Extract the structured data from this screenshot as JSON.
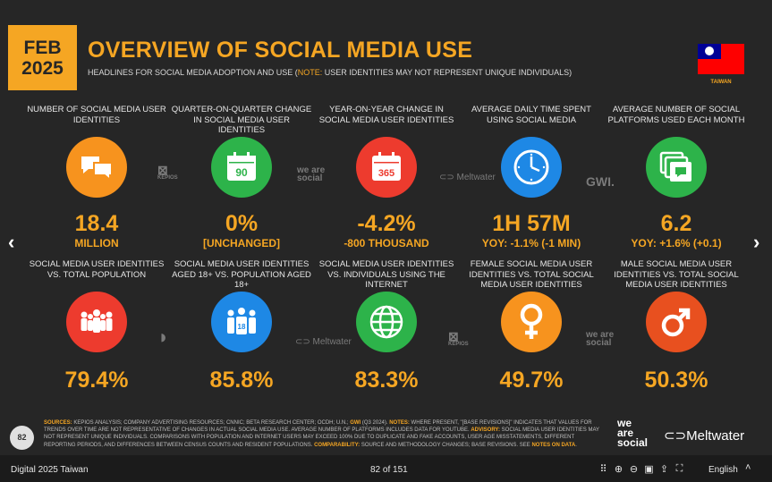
{
  "header": {
    "month": "FEB",
    "year": "2025",
    "title": "OVERVIEW OF SOCIAL MEDIA USE",
    "subtitle_main": "HEADLINES FOR SOCIAL MEDIA ADOPTION AND USE (",
    "subtitle_note": "NOTE:",
    "subtitle_rest": " USER IDENTITIES MAY NOT REPRESENT UNIQUE INDIVIDUALS)",
    "country": "TAIWAN"
  },
  "colors": {
    "accent": "#f5a623",
    "orange": "#f7931e",
    "green": "#2db34a",
    "red": "#ed3b2e",
    "blue": "#1e88e5",
    "dark_orange": "#e8501f"
  },
  "row1": [
    {
      "label": "NUMBER OF SOCIAL MEDIA USER IDENTITIES",
      "value": "18.4",
      "sub": "MILLION",
      "icon": "speech-bubbles-icon"
    },
    {
      "label": "QUARTER-ON-QUARTER CHANGE IN SOCIAL MEDIA USER IDENTITIES",
      "value": "0%",
      "sub": "[UNCHANGED]",
      "icon": "calendar-90-icon",
      "icon_text": "90"
    },
    {
      "label": "YEAR-ON-YEAR CHANGE IN SOCIAL MEDIA USER IDENTITIES",
      "value": "-4.2%",
      "sub": "-800 THOUSAND",
      "icon": "calendar-365-icon",
      "icon_text": "365"
    },
    {
      "label": "AVERAGE DAILY TIME SPENT USING SOCIAL MEDIA",
      "value": "1H 57M",
      "sub": "YOY: -1.1% (-1 MIN)",
      "icon": "clock-icon"
    },
    {
      "label": "AVERAGE NUMBER OF SOCIAL PLATFORMS USED EACH MONTH",
      "value": "6.2",
      "sub": "YOY: +1.6% (+0.1)",
      "icon": "stacked-windows-icon"
    }
  ],
  "row2": [
    {
      "label": "SOCIAL MEDIA USER IDENTITIES vs. TOTAL POPULATION",
      "value": "79.4%",
      "icon": "crowd-icon"
    },
    {
      "label": "SOCIAL MEDIA USER IDENTITIES AGED 18+ vs. POPULATION AGED 18+",
      "value": "85.8%",
      "icon": "adults-18-icon",
      "icon_text": "18"
    },
    {
      "label": "SOCIAL MEDIA USER IDENTITIES vs. INDIVIDUALS USING THE INTERNET",
      "value": "83.3%",
      "icon": "globe-icon"
    },
    {
      "label": "FEMALE SOCIAL MEDIA USER IDENTITIES vs. TOTAL SOCIAL MEDIA USER IDENTITIES",
      "value": "49.7%",
      "icon": "female-symbol-icon"
    },
    {
      "label": "MALE SOCIAL MEDIA USER IDENTITIES vs. TOTAL SOCIAL MEDIA USER IDENTITIES",
      "value": "50.3%",
      "icon": "male-symbol-icon"
    }
  ],
  "watermarks": {
    "kepios_a": "KEPIOS",
    "wearesocial_a": "we are social",
    "meltwater_a": "Meltwater",
    "gwi": "GWI.",
    "meltwater_b": "Meltwater",
    "kepios_b": "KEPIOS",
    "wearesocial_b": "we are social"
  },
  "footer": {
    "page_number": "82",
    "sources_label": "SOURCES:",
    "sources_text": " KEPIOS ANALYSIS; COMPANY ADVERTISING RESOURCES; CNNIC; BETA RESEARCH CENTER; OCDH; U.N.; ",
    "gwi_label": "GWI",
    "gwi_text": " (Q3 2024). ",
    "notes_label": "NOTES:",
    "notes_text": " WHERE PRESENT, \"[BASE REVISIONS]\" INDICATES THAT VALUES FOR TRENDS OVER TIME ARE NOT REPRESENTATIVE OF CHANGES IN ACTUAL SOCIAL MEDIA USE. AVERAGE NUMBER OF PLATFORMS INCLUDES DATA FOR YOUTUBE. ",
    "advisory_label": "ADVISORY:",
    "advisory_text": " SOCIAL MEDIA USER IDENTITIES MAY NOT REPRESENT UNIQUE INDIVIDUALS. COMPARISONS WITH POPULATION AND INTERNET USERS MAY EXCEED 100% DUE TO DUPLICATE AND FAKE ACCOUNTS, USER AGE MISSTATEMENTS, DIFFERENT REPORTING PERIODS, AND DIFFERENCES BETWEEN CENSUS COUNTS AND RESIDENT POPULATIONS. ",
    "comparability_label": "COMPARABILITY:",
    "comparability_text": " SOURCE AND METHODOLOGY CHANGES; BASE REVISIONS. SEE ",
    "notes_on_data": "NOTES ON DATA",
    "end": ".",
    "logo_we": "we",
    "logo_are": "are",
    "logo_social": "social",
    "logo_meltwater": "Meltwater"
  },
  "viewer": {
    "doc_title": "Digital 2025 Taiwan",
    "page_indicator": "82 of 151",
    "language": "English"
  }
}
